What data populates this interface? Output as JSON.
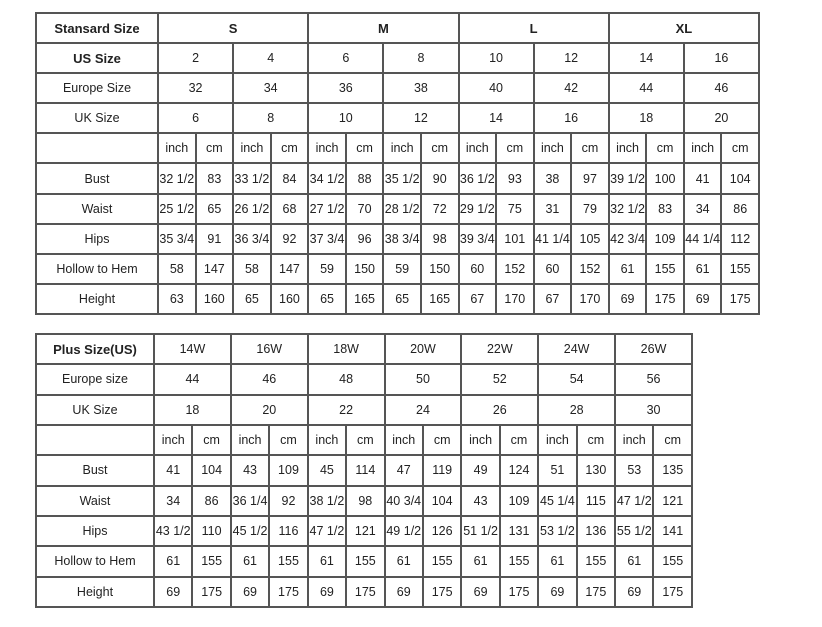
{
  "standard": {
    "header_label": "Stansard Size",
    "groups": [
      "S",
      "M",
      "L",
      "XL"
    ],
    "us_label": "US Size",
    "us_sizes": [
      "2",
      "4",
      "6",
      "8",
      "10",
      "12",
      "14",
      "16"
    ],
    "europe_label": "Europe Size",
    "europe_sizes": [
      "32",
      "34",
      "36",
      "38",
      "40",
      "42",
      "44",
      "46"
    ],
    "uk_label": "UK Size",
    "uk_sizes": [
      "6",
      "8",
      "10",
      "12",
      "14",
      "16",
      "18",
      "20"
    ],
    "unit_inch": "inch",
    "unit_cm": "cm",
    "measurements": [
      {
        "label": "Bust",
        "values": [
          "32 1/2",
          "83",
          "33 1/2",
          "84",
          "34 1/2",
          "88",
          "35 1/2",
          "90",
          "36 1/2",
          "93",
          "38",
          "97",
          "39 1/2",
          "100",
          "41",
          "104"
        ]
      },
      {
        "label": "Waist",
        "values": [
          "25 1/2",
          "65",
          "26 1/2",
          "68",
          "27 1/2",
          "70",
          "28 1/2",
          "72",
          "29 1/2",
          "75",
          "31",
          "79",
          "32 1/2",
          "83",
          "34",
          "86"
        ]
      },
      {
        "label": "Hips",
        "values": [
          "35 3/4",
          "91",
          "36 3/4",
          "92",
          "37 3/4",
          "96",
          "38 3/4",
          "98",
          "39 3/4",
          "101",
          "41 1/4",
          "105",
          "42 3/4",
          "109",
          "44 1/4",
          "112"
        ]
      },
      {
        "label": "Hollow to Hem",
        "values": [
          "58",
          "147",
          "58",
          "147",
          "59",
          "150",
          "59",
          "150",
          "60",
          "152",
          "60",
          "152",
          "61",
          "155",
          "61",
          "155"
        ]
      },
      {
        "label": "Height",
        "values": [
          "63",
          "160",
          "65",
          "160",
          "65",
          "165",
          "65",
          "165",
          "67",
          "170",
          "67",
          "170",
          "69",
          "175",
          "69",
          "175"
        ]
      }
    ]
  },
  "plus": {
    "header_label": "Plus Size(US)",
    "us_sizes": [
      "14W",
      "16W",
      "18W",
      "20W",
      "22W",
      "24W",
      "26W"
    ],
    "europe_label": "Europe size",
    "europe_sizes": [
      "44",
      "46",
      "48",
      "50",
      "52",
      "54",
      "56"
    ],
    "uk_label": "UK Size",
    "uk_sizes": [
      "18",
      "20",
      "22",
      "24",
      "26",
      "28",
      "30"
    ],
    "unit_inch": "inch",
    "unit_cm": "cm",
    "measurements": [
      {
        "label": "Bust",
        "values": [
          "41",
          "104",
          "43",
          "109",
          "45",
          "114",
          "47",
          "119",
          "49",
          "124",
          "51",
          "130",
          "53",
          "135"
        ]
      },
      {
        "label": "Waist",
        "values": [
          "34",
          "86",
          "36 1/4",
          "92",
          "38 1/2",
          "98",
          "40 3/4",
          "104",
          "43",
          "109",
          "45 1/4",
          "115",
          "47 1/2",
          "121"
        ]
      },
      {
        "label": "Hips",
        "values": [
          "43 1/2",
          "110",
          "45 1/2",
          "116",
          "47 1/2",
          "121",
          "49 1/2",
          "126",
          "51 1/2",
          "131",
          "53 1/2",
          "136",
          "55 1/2",
          "141"
        ]
      },
      {
        "label": "Hollow to Hem",
        "values": [
          "61",
          "155",
          "61",
          "155",
          "61",
          "155",
          "61",
          "155",
          "61",
          "155",
          "61",
          "155",
          "61",
          "155"
        ]
      },
      {
        "label": "Height",
        "values": [
          "69",
          "175",
          "69",
          "175",
          "69",
          "175",
          "69",
          "175",
          "69",
          "175",
          "69",
          "175",
          "69",
          "175"
        ]
      }
    ]
  }
}
